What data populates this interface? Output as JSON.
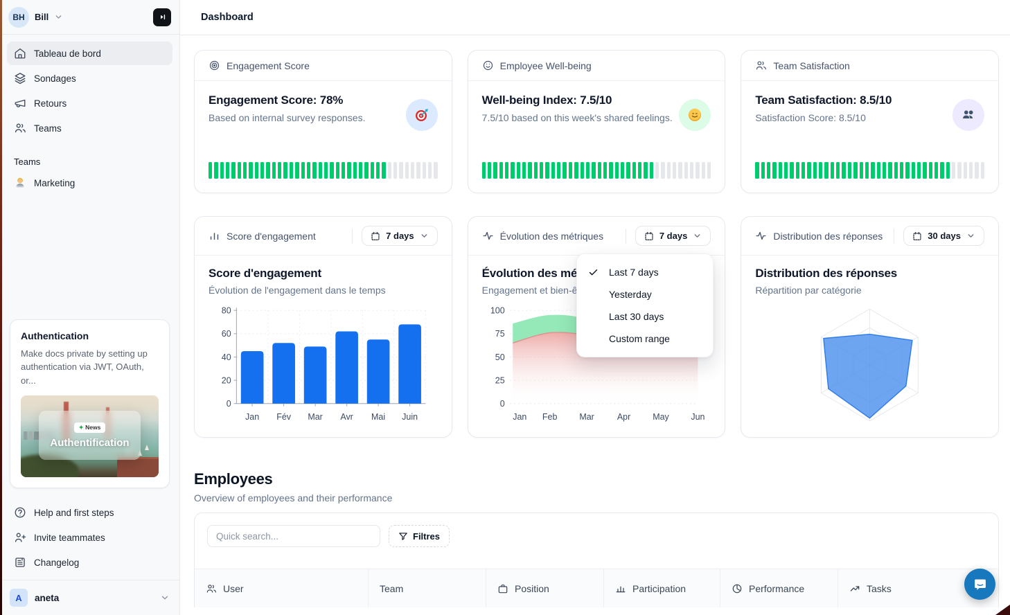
{
  "colors": {
    "progress_green": "#00CC6E",
    "progress_gray": "#E5E7EB",
    "bar_blue": "#1570EF",
    "area_green": "#8FE8B4",
    "area_pink": "#EBA3A0",
    "radar_fill": "#4A8FEC",
    "radar_stroke": "#2F7BE8"
  },
  "topbar": {
    "title": "Dashboard"
  },
  "sidebar": {
    "user": {
      "initials": "BH",
      "name": "Bill"
    },
    "nav": [
      {
        "label": "Tableau de bord",
        "icon": "home",
        "active": true
      },
      {
        "label": "Sondages",
        "icon": "layers",
        "active": false
      },
      {
        "label": "Retours",
        "icon": "megaphone",
        "active": false
      },
      {
        "label": "Teams",
        "icon": "users",
        "active": false
      }
    ],
    "teams_section_label": "Teams",
    "teams": [
      {
        "label": "Marketing",
        "icon": "technologist-emoji"
      }
    ],
    "promo": {
      "title": "Authentication",
      "body": "Make docs private by setting up authentication via JWT, OAuth, or...",
      "badge": "News",
      "caption": "Authentification"
    },
    "footer_nav": [
      {
        "label": "Help and first steps",
        "icon": "help-circle"
      },
      {
        "label": "Invite teammates",
        "icon": "user-plus"
      },
      {
        "label": "Changelog",
        "icon": "changelog"
      }
    ],
    "workspace": {
      "initial": "A",
      "name": "aneta"
    }
  },
  "stat_cards": [
    {
      "header": "Engagement Score",
      "icon": "target",
      "title": "Engagement Score: 78%",
      "subtitle": "Based on internal survey responses.",
      "emoji": "target-dart",
      "badge_bg": "#dbeafe",
      "progress": {
        "total": 40,
        "filled": 31
      }
    },
    {
      "header": "Employee Well-being",
      "icon": "smile",
      "title": "Well-being Index: 7.5/10",
      "subtitle": "7.5/10 based on this week's shared feelings.",
      "emoji": "smiling-face",
      "badge_bg": "#dcfce7",
      "progress": {
        "total": 40,
        "filled": 30
      }
    },
    {
      "header": "Team Satisfaction",
      "icon": "users",
      "title": "Team Satisfaction: 8.5/10",
      "subtitle": "Satisfaction Score: 8.5/10",
      "emoji": "busts-in-silhouette",
      "badge_bg": "#ede9fe",
      "progress": {
        "total": 40,
        "filled": 34
      }
    }
  ],
  "chart_cards": [
    {
      "header": "Score d'engagement",
      "icon": "bar-chart",
      "range": "7 days"
    },
    {
      "header": "Évolution des métriques",
      "icon": "activity",
      "range": "7 days"
    },
    {
      "header": "Distribution des réponses",
      "icon": "activity",
      "range": "30 days"
    }
  ],
  "dropdown": {
    "items": [
      {
        "label": "Last 7 days",
        "checked": true
      },
      {
        "label": "Yesterday",
        "checked": false
      },
      {
        "label": "Last 30 days",
        "checked": false
      },
      {
        "label": "Custom range",
        "checked": false
      }
    ]
  },
  "chart_data": [
    {
      "type": "bar",
      "title": "Score d'engagement",
      "subtitle": "Évolution de l'engagement dans le temps",
      "categories": [
        "Jan",
        "Fév",
        "Mar",
        "Avr",
        "Mai",
        "Juin"
      ],
      "values": [
        45,
        52,
        49,
        62,
        55,
        68
      ],
      "ylim": [
        0,
        80
      ],
      "yticks": [
        0,
        20,
        40,
        60,
        80
      ],
      "grid": "dotted",
      "color": "#1570EF"
    },
    {
      "type": "area",
      "title": "Évolution des métriques",
      "subtitle": "Engagement et bien-être",
      "categories": [
        "Jan",
        "Feb",
        "Mar",
        "Apr",
        "May",
        "Jun"
      ],
      "series": [
        {
          "name": "engagement",
          "values": [
            86,
            95,
            90,
            66,
            70,
            72
          ],
          "color": "#8FE8B4"
        },
        {
          "name": "bien-être",
          "values": [
            65,
            76,
            73,
            60,
            64,
            66
          ],
          "color": "#EBA3A0"
        }
      ],
      "ylim": [
        0,
        100
      ],
      "yticks": [
        0,
        25,
        50,
        75,
        100
      ],
      "grid": "dotted"
    },
    {
      "type": "radar",
      "title": "Distribution des réponses",
      "subtitle": "Répartition par catégorie",
      "axes": 6,
      "rings": 3,
      "values": [
        55,
        88,
        75,
        95,
        85,
        95
      ],
      "max": 100
    }
  ],
  "employees": {
    "title": "Employees",
    "subtitle": "Overview of employees and their performance",
    "search_placeholder": "Quick search...",
    "filter_label": "Filtres",
    "columns": [
      {
        "label": "User",
        "icon": "users"
      },
      {
        "label": "Team",
        "icon": ""
      },
      {
        "label": "Position",
        "icon": "briefcase"
      },
      {
        "label": "Participation",
        "icon": "bar-chart"
      },
      {
        "label": "Performance",
        "icon": "pie-chart"
      },
      {
        "label": "Tasks",
        "icon": "trending-up"
      }
    ]
  }
}
